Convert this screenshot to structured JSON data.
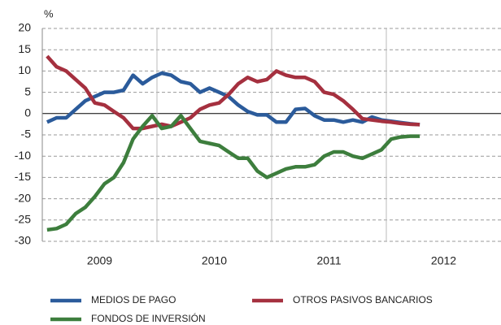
{
  "chart_data": {
    "type": "line",
    "y_unit": "%",
    "categories": [
      null,
      null,
      null,
      null,
      null,
      "2009",
      null,
      null,
      null,
      null,
      null,
      null,
      null,
      null,
      null,
      null,
      null,
      "2010",
      null,
      null,
      null,
      null,
      null,
      null,
      null,
      null,
      null,
      null,
      null,
      "2011",
      null,
      null,
      null,
      null,
      null,
      null,
      null,
      null,
      null,
      null,
      null,
      "2012",
      null,
      null,
      null,
      null,
      null,
      null
    ],
    "series": [
      {
        "name": "MEDIOS DE PAGO",
        "color": "#2b5b9b",
        "values": [
          -2,
          -1,
          -1,
          1,
          3,
          4,
          5,
          5,
          5.5,
          9,
          7,
          8.5,
          9.5,
          9,
          7.5,
          7,
          5,
          6,
          5,
          4,
          2,
          0.5,
          -0.3,
          -0.3,
          -2,
          -2,
          1,
          1.2,
          -0.5,
          -1.5,
          -1.5,
          -2,
          -1.5,
          -2,
          -0.8,
          -1.5,
          -1.8,
          -2.1,
          -2.4,
          -2.6,
          null,
          null,
          null,
          null,
          null,
          null,
          null,
          null
        ]
      },
      {
        "name": "OTROS PASIVOS BANCARIOS",
        "color": "#a5303f",
        "values": [
          13.5,
          11,
          10,
          8,
          6,
          2.5,
          2,
          0.5,
          -1,
          -3.5,
          -3.5,
          -3,
          -2.5,
          -3,
          -2,
          -1,
          1,
          2,
          2.5,
          4.5,
          7,
          8.5,
          7.5,
          8,
          10,
          9,
          8.5,
          8.5,
          7.5,
          5,
          4.5,
          3,
          1,
          -1.2,
          -1.5,
          -1.8,
          -2,
          -2.3,
          -2.5,
          -2.6,
          null,
          null,
          null,
          null,
          null,
          null,
          null,
          null
        ]
      },
      {
        "name": "FONDOS DE INVERSIÓN",
        "color": "#3d7e3d",
        "values": [
          -27.3,
          -27,
          -26,
          -23.5,
          -22,
          -19.5,
          -16.5,
          -15,
          -11.5,
          -6,
          -3,
          -0.5,
          -3.5,
          -3,
          -0.5,
          -3.5,
          -6.5,
          -7,
          -7.5,
          -9,
          -10.5,
          -10.5,
          -13.5,
          -15,
          -14,
          -13,
          -12.5,
          -12.5,
          -12,
          -10,
          -9,
          -9,
          -10,
          -10.5,
          -9.5,
          -8.5,
          -6,
          -5.5,
          -5.3,
          -5.3,
          null,
          null,
          null,
          null,
          null,
          null,
          null,
          null
        ]
      }
    ],
    "ylim": [
      -30,
      20
    ],
    "yticks": [
      -30,
      -25,
      -20,
      -15,
      -10,
      -5,
      0,
      5,
      10,
      15,
      20
    ],
    "grid": true
  }
}
